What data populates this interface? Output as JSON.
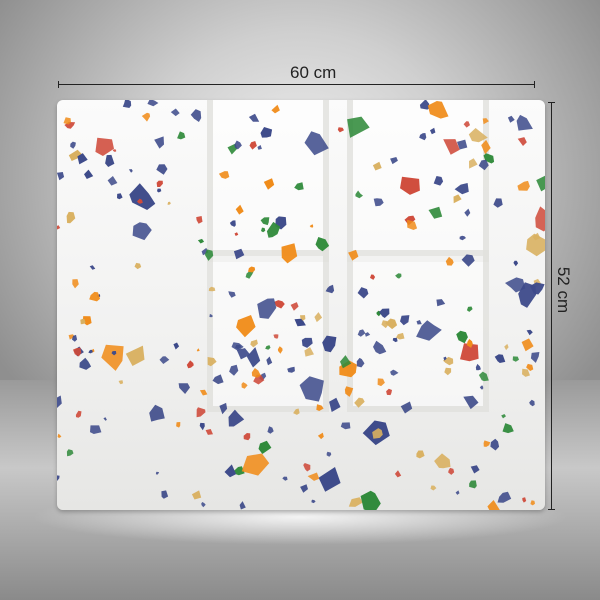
{
  "dimensions": {
    "width_label": "60 cm",
    "height_label": "52 cm"
  },
  "pattern": {
    "name": "terrazzo",
    "colors": [
      "#3d4a8a",
      "#3d4a8a",
      "#3d4a8a",
      "#d9b060",
      "#f08c1a",
      "#cf4a3a",
      "#2f8a3a"
    ]
  }
}
